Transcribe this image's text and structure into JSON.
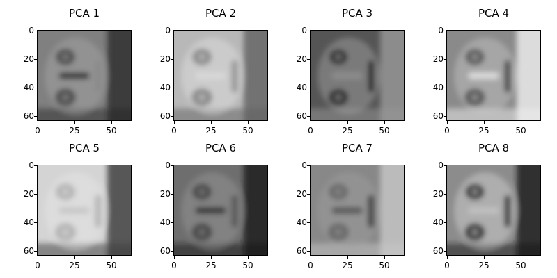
{
  "chart_data": {
    "type": "heatmap",
    "colormap": "gray",
    "image_shape": [
      64,
      64
    ],
    "x_ticks": [
      "0",
      "25",
      "50"
    ],
    "y_ticks": [
      "0",
      "20",
      "40",
      "60"
    ],
    "x_tick_values": [
      0,
      25,
      50
    ],
    "y_tick_values": [
      0,
      20,
      40,
      60
    ],
    "panels": [
      {
        "title": "PCA 1",
        "base": "#808080",
        "eyes": "#505050",
        "nose": "#3a3a3a",
        "mouth": "#8a8a8a",
        "edge": "#2a2a2a",
        "bright": "#a8a8a8"
      },
      {
        "title": "PCA 2",
        "base": "#b8b8b8",
        "eyes": "#8a8a8a",
        "nose": "#d8d8d8",
        "mouth": "#9a9a9a",
        "edge": "#606060",
        "bright": "#e2e2e2"
      },
      {
        "title": "PCA 3",
        "base": "#555555",
        "eyes": "#353535",
        "nose": "#8c8c8c",
        "mouth": "#2c2c2c",
        "edge": "#9a9a9a",
        "bright": "#a8a8a8"
      },
      {
        "title": "PCA 4",
        "base": "#8a8a8a",
        "eyes": "#5a5a5a",
        "nose": "#dcdcdc",
        "mouth": "#505050",
        "edge": "#f0f0f0",
        "bright": "#c8c8c8"
      },
      {
        "title": "PCA 5",
        "base": "#d4d4d4",
        "eyes": "#b4b4b4",
        "nose": "#c8c8c8",
        "mouth": "#b8b8b8",
        "edge": "#3a3a3a",
        "bright": "#e6e6e6"
      },
      {
        "title": "PCA 6",
        "base": "#6e6e6e",
        "eyes": "#4a4a4a",
        "nose": "#383838",
        "mouth": "#5a5a5a",
        "edge": "#1a1a1a",
        "bright": "#9a9a9a"
      },
      {
        "title": "PCA 7",
        "base": "#888888",
        "eyes": "#6a6a6a",
        "nose": "#5a5a5a",
        "mouth": "#4a4a4a",
        "edge": "#c8c8c8",
        "bright": "#a0a0a0"
      },
      {
        "title": "PCA 8",
        "base": "#8c8c8c",
        "eyes": "#3c3c3c",
        "nose": "#c0c0c0",
        "mouth": "#404040",
        "edge": "#151515",
        "bright": "#d8d8d8"
      }
    ]
  }
}
